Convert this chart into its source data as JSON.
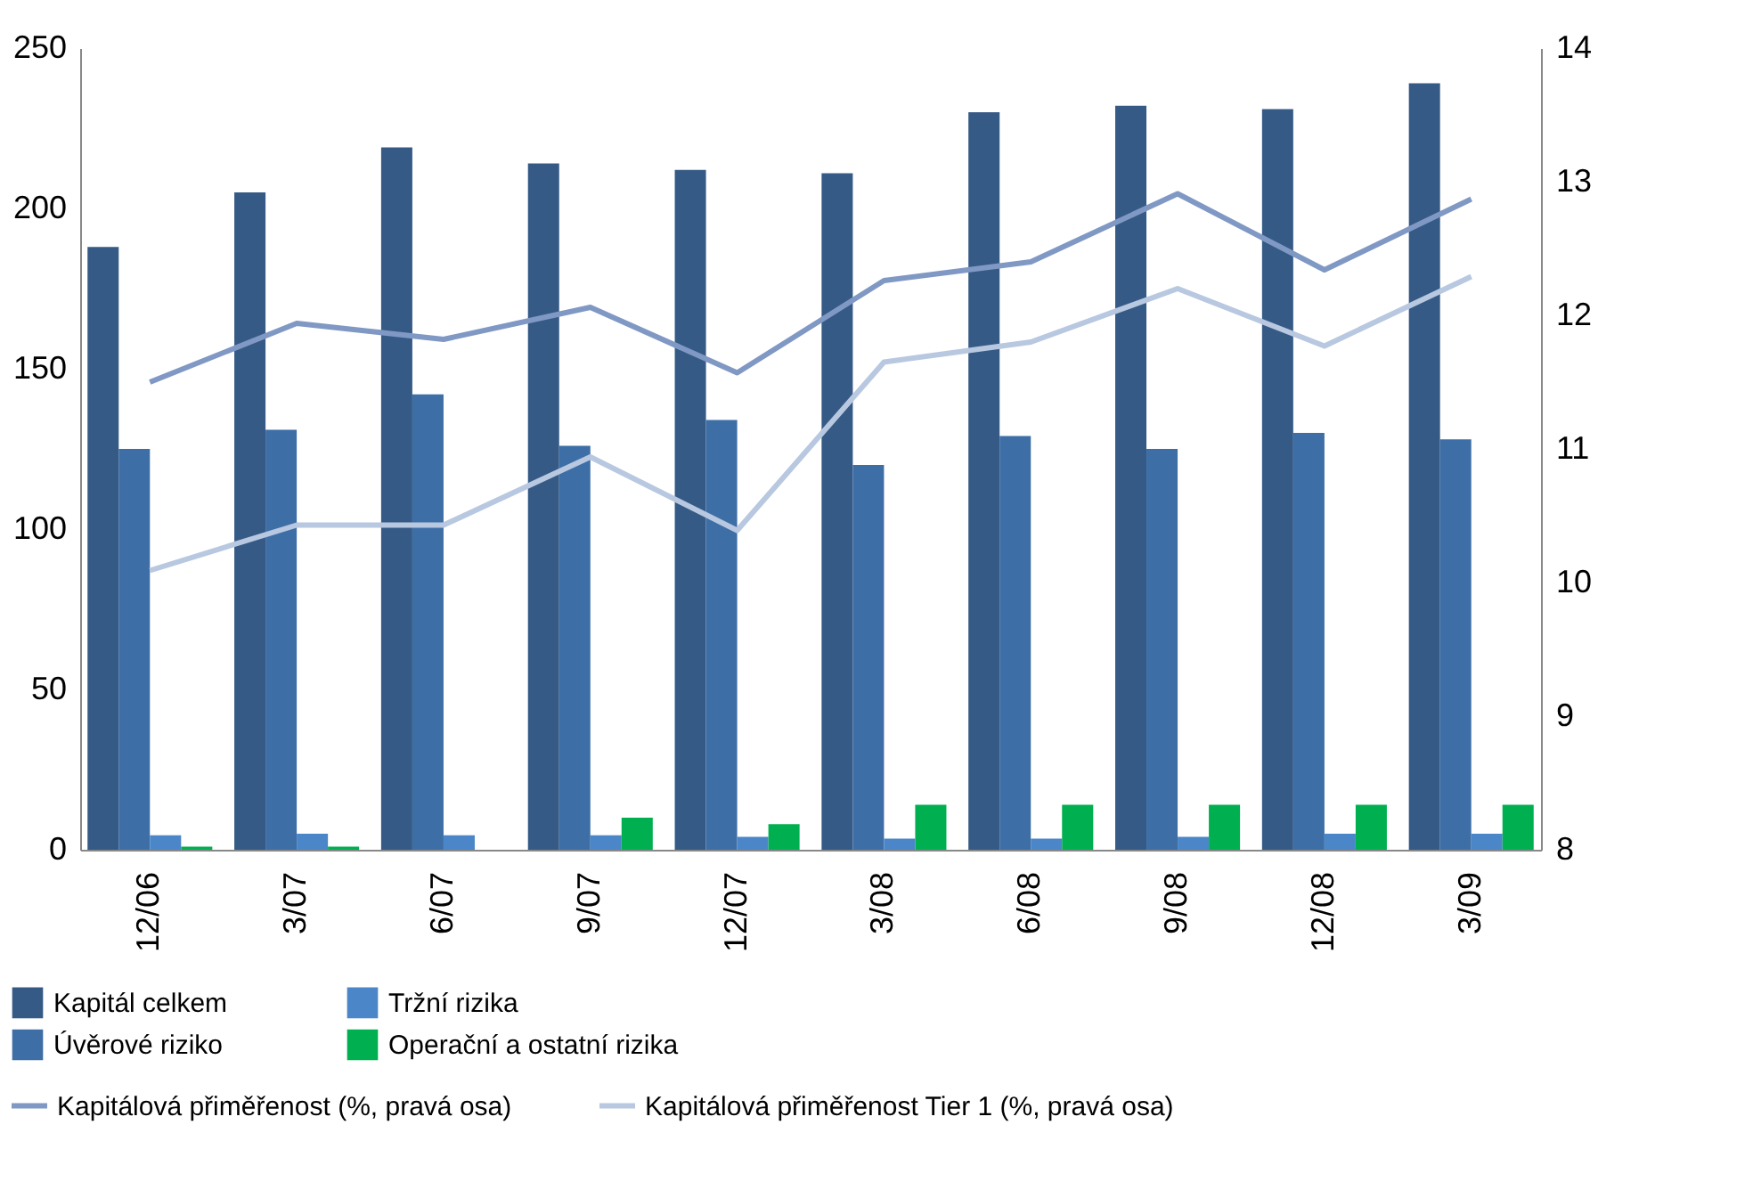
{
  "chart_data": {
    "type": "bar",
    "categories": [
      "12/06",
      "3/07",
      "6/07",
      "9/07",
      "12/07",
      "3/08",
      "6/08",
      "9/08",
      "12/08",
      "3/09"
    ],
    "series": [
      {
        "name": "Kapitál celkem",
        "color": "#355a86",
        "values": [
          188,
          205,
          219,
          214,
          212,
          211,
          230,
          232,
          231,
          239
        ]
      },
      {
        "name": "Úvěrové riziko",
        "color": "#3e6ea6",
        "values": [
          125,
          131,
          142,
          126,
          134,
          120,
          129,
          125,
          130,
          128
        ]
      },
      {
        "name": "Tržní rizika",
        "color": "#4a86c8",
        "values": [
          4.5,
          5,
          4.5,
          4.5,
          4,
          3.5,
          3.5,
          4,
          5,
          5
        ]
      },
      {
        "name": "Operační a ostatní rizika",
        "color": "#00b050",
        "values": [
          1,
          1,
          0,
          10,
          8,
          14,
          14,
          14,
          14,
          14
        ]
      },
      {
        "name": "Kapitálová přiměřenost (%, pravá osa)",
        "color": "#8098c4",
        "type": "line",
        "axis": "y2",
        "values": [
          11.5,
          11.94,
          11.82,
          12.06,
          11.57,
          12.26,
          12.4,
          12.91,
          12.34,
          12.87
        ]
      },
      {
        "name": "Kapitálová přiměřenost Tier 1 (%, pravá osa)",
        "color": "#b8c8e0",
        "type": "line",
        "axis": "y2",
        "values": [
          10.09,
          10.43,
          10.43,
          10.94,
          10.39,
          11.65,
          11.8,
          12.2,
          11.77,
          12.29
        ]
      }
    ],
    "ylim": [
      0,
      250
    ],
    "yticks": [
      0,
      50,
      100,
      150,
      200,
      250
    ],
    "y2lim": [
      8,
      14
    ],
    "y2ticks": [
      8,
      9,
      10,
      11,
      12,
      13,
      14
    ],
    "grid": false,
    "legend": "bottom"
  }
}
